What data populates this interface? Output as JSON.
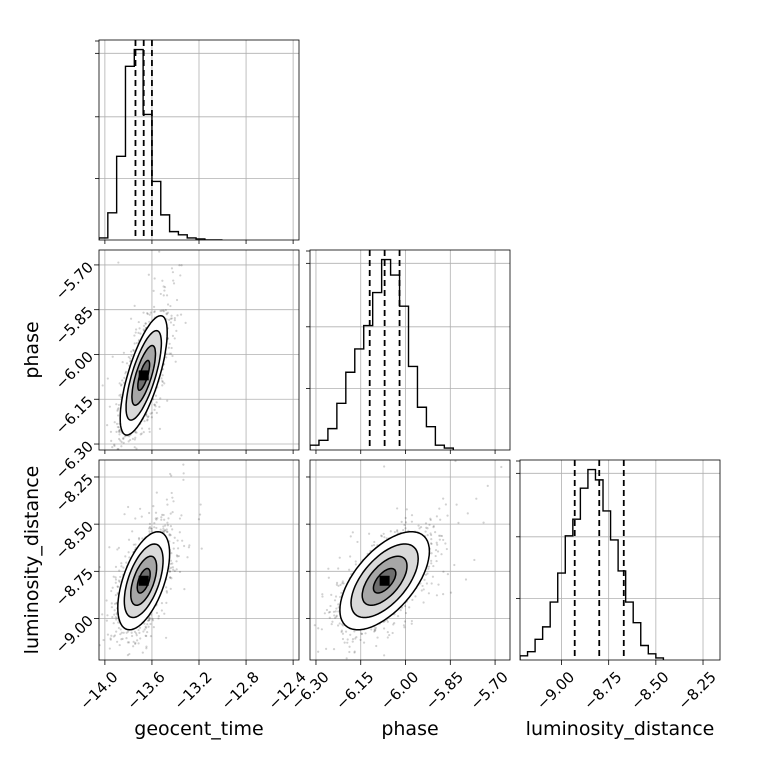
{
  "chart_data": {
    "type": "corner",
    "parameters": [
      "geocent_time",
      "phase",
      "luminosity_distance"
    ],
    "axes": [
      {
        "label": "geocent_time",
        "lim": [
          -14.05,
          -12.35
        ],
        "ticks": [
          -14.0,
          -13.6,
          -13.2,
          -12.8,
          -12.4
        ],
        "tick_labels": [
          "−14.0",
          "−13.6",
          "−13.2",
          "−12.8",
          "−12.4"
        ]
      },
      {
        "label": "phase",
        "lim": [
          -6.32,
          -5.65
        ],
        "ticks": [
          -6.3,
          -6.15,
          -6.0,
          -5.85,
          -5.7
        ],
        "tick_labels": [
          "−6.30",
          "−6.15",
          "−6.00",
          "−5.85",
          "−5.70"
        ]
      },
      {
        "label": "luminosity_distance",
        "lim": [
          -9.22,
          -8.16
        ],
        "ticks": [
          -9.0,
          -8.75,
          -8.5,
          -8.25
        ],
        "tick_labels": [
          "−9.00",
          "−8.75",
          "−8.50",
          "−8.25"
        ]
      }
    ],
    "histograms": [
      {
        "parameter": "geocent_time",
        "bin_edges": [
          -14.05,
          -13.975,
          -13.9,
          -13.825,
          -13.75,
          -13.675,
          -13.6,
          -13.525,
          -13.45,
          -13.375,
          -13.3,
          -13.225,
          -13.15,
          -13.075,
          -13.0
        ],
        "counts": [
          0.01,
          0.13,
          0.4,
          0.83,
          0.91,
          0.6,
          0.28,
          0.12,
          0.04,
          0.025,
          0.01,
          0.005,
          0,
          0
        ],
        "quantiles": [
          -13.74,
          -13.67,
          -13.6
        ]
      },
      {
        "parameter": "phase",
        "bin_edges": [
          -6.32,
          -6.29,
          -6.26,
          -6.23,
          -6.2,
          -6.17,
          -6.14,
          -6.11,
          -6.08,
          -6.05,
          -6.02,
          -5.99,
          -5.96,
          -5.93,
          -5.9,
          -5.87,
          -5.84
        ],
        "counts": [
          0.025,
          0.05,
          0.11,
          0.24,
          0.4,
          0.52,
          0.64,
          0.81,
          0.98,
          0.9,
          0.74,
          0.43,
          0.22,
          0.12,
          0.025,
          0.01
        ],
        "quantiles": [
          -6.12,
          -6.07,
          -6.02
        ]
      },
      {
        "parameter": "luminosity_distance",
        "bin_edges": [
          -9.22,
          -9.18,
          -9.14,
          -9.1,
          -9.06,
          -9.02,
          -8.98,
          -8.94,
          -8.9,
          -8.86,
          -8.82,
          -8.78,
          -8.74,
          -8.7,
          -8.66,
          -8.62,
          -8.58,
          -8.54,
          -8.5,
          -8.46
        ],
        "counts": [
          0.02,
          0.04,
          0.1,
          0.16,
          0.28,
          0.42,
          0.6,
          0.68,
          0.83,
          0.92,
          0.87,
          0.72,
          0.58,
          0.43,
          0.28,
          0.18,
          0.07,
          0.03,
          0.01
        ],
        "quantiles": [
          -8.93,
          -8.8,
          -8.67
        ]
      }
    ],
    "pairs": [
      {
        "x": "geocent_time",
        "y": "phase",
        "center": [
          -13.67,
          -6.07
        ],
        "sd": [
          0.1,
          0.1
        ],
        "corr": 0.72,
        "contour_levels_sigma": [
          0.5,
          1.0,
          1.5,
          2.0
        ]
      },
      {
        "x": "geocent_time",
        "y": "luminosity_distance",
        "center": [
          -13.67,
          -8.8
        ],
        "sd": [
          0.11,
          0.13
        ],
        "corr": 0.55,
        "contour_levels_sigma": [
          0.5,
          1.0,
          1.5,
          2.0
        ]
      },
      {
        "x": "phase",
        "y": "luminosity_distance",
        "center": [
          -6.07,
          -8.8
        ],
        "sd": [
          0.075,
          0.13
        ],
        "corr": 0.6,
        "contour_levels_sigma": [
          0.5,
          1.0,
          1.5,
          2.0
        ]
      }
    ],
    "grid": true,
    "title": ""
  }
}
